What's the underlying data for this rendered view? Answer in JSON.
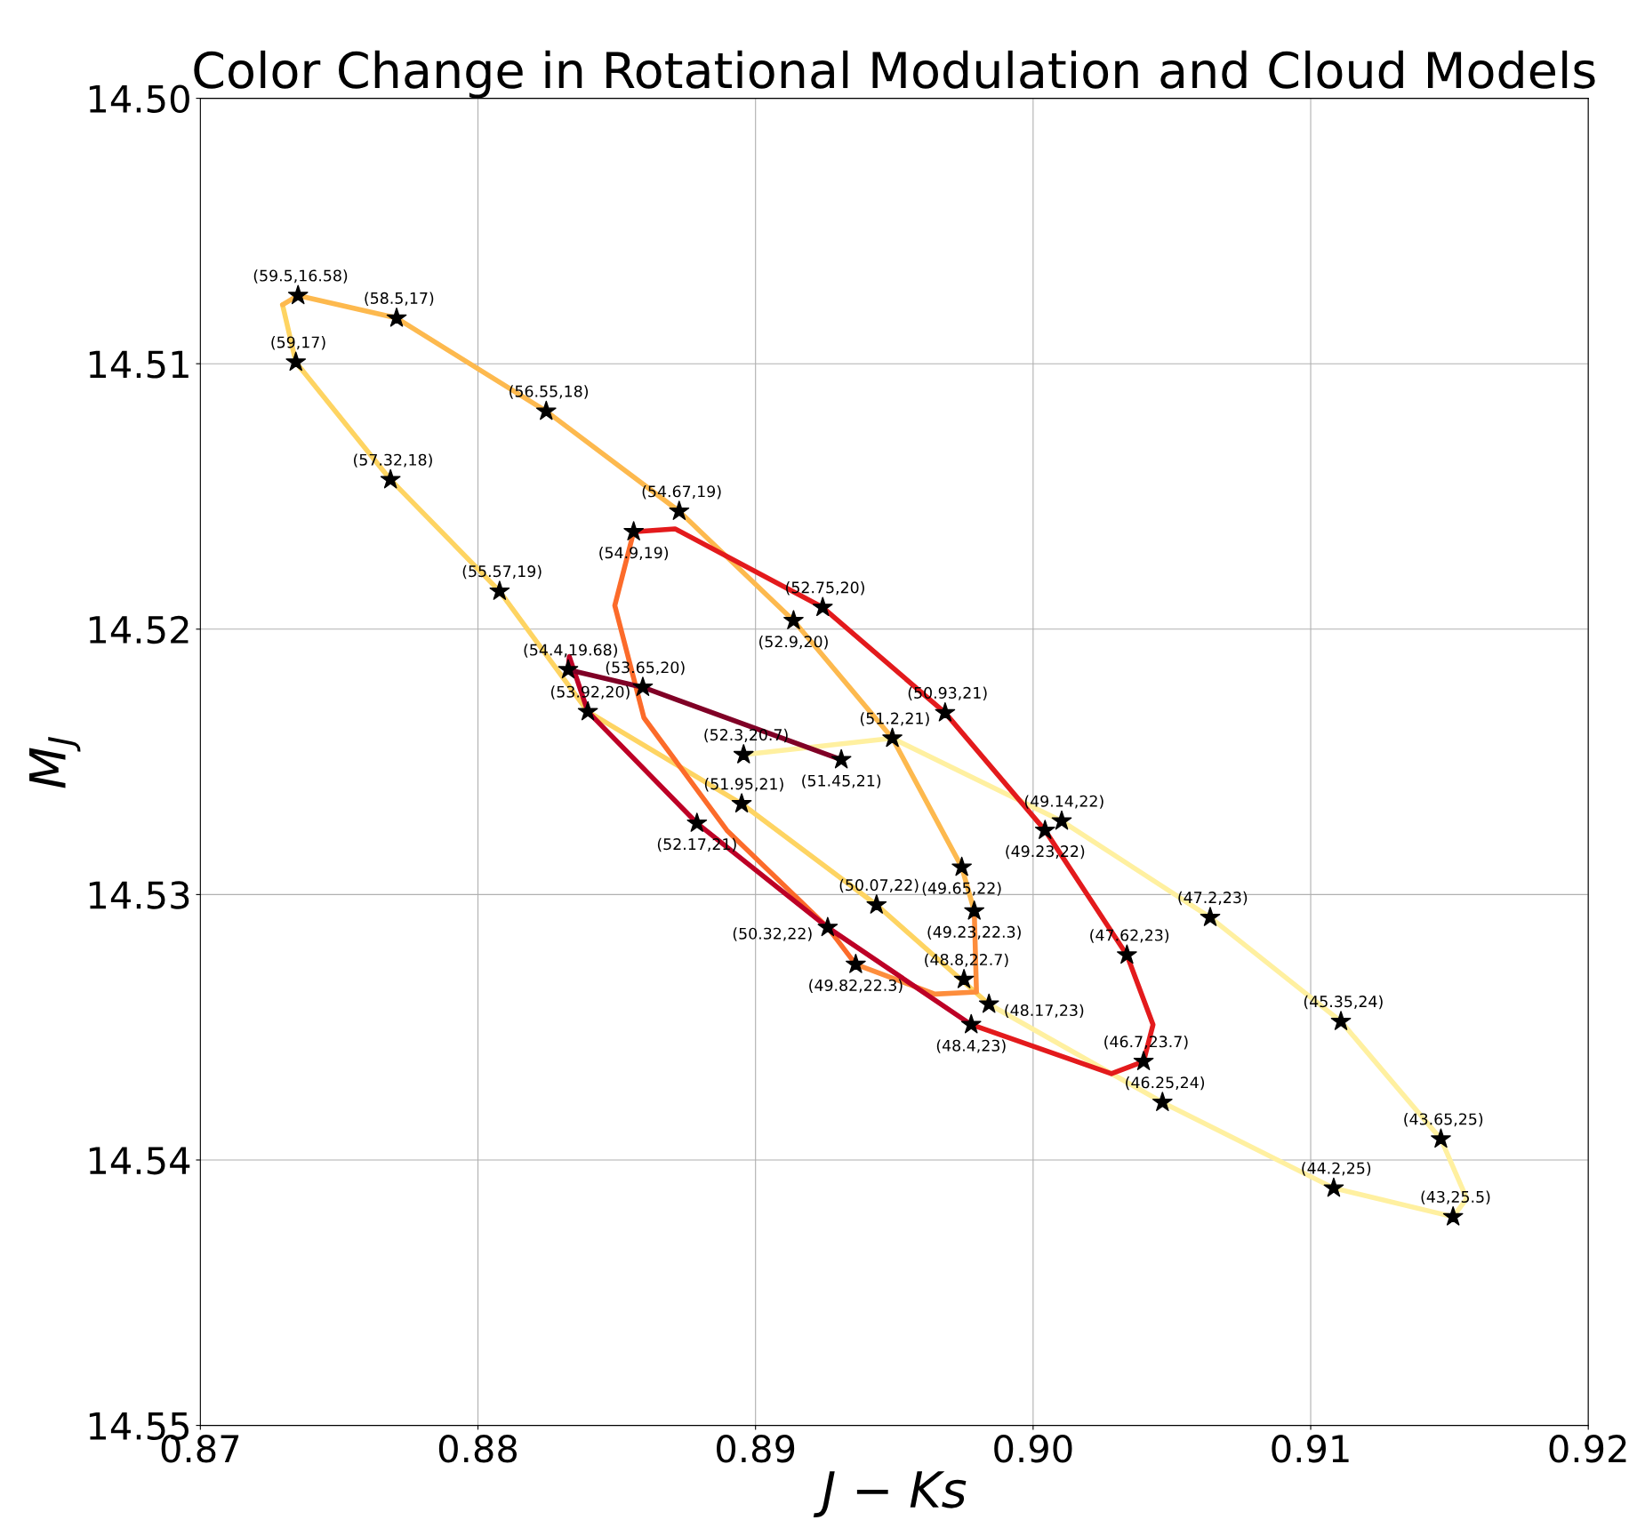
{
  "chart_data": {
    "type": "line",
    "title": "Color Change in Rotational Modulation and Cloud Models",
    "xlabel": "J − Ks",
    "ylabel": "M$_{J}$",
    "xlim": [
      0.87,
      0.92
    ],
    "ylim": [
      14.55,
      14.5
    ],
    "xticks": [
      0.87,
      0.88,
      0.89,
      {
        "value": 0.9,
        "label": "0.90"
      },
      0.91,
      0.92
    ],
    "yticks": [
      {
        "value": 14.5,
        "label": "14.50"
      },
      14.51,
      14.52,
      14.53,
      14.54,
      14.55
    ],
    "grid": true,
    "legend": false,
    "line_style": "solid",
    "marker": "none",
    "series": [
      {
        "color": "#fed462",
        "x": [
          0.87296,
          0.87344,
          0.87685,
          0.88078,
          0.88396,
          0.8895,
          0.89436,
          0.89841
        ],
        "values": [
          14.50778,
          14.50994,
          14.51437,
          14.51857,
          14.52311,
          14.52658,
          14.53039,
          14.53413
        ]
      },
      {
        "color": "#fff0a0",
        "x": [
          0.89841,
          0.90466,
          0.91083,
          0.91513,
          0.91562,
          0.91469,
          0.91109,
          0.90638,
          0.90103,
          0.89493,
          0.88957
        ],
        "values": [
          14.53413,
          14.53783,
          14.54106,
          14.54214,
          14.54145,
          14.53921,
          14.53478,
          14.53086,
          14.52723,
          14.52411,
          14.52473
        ]
      },
      {
        "color": "#fdb94e",
        "x": [
          0.87296,
          0.87352,
          0.87707,
          0.88246,
          0.88725,
          0.89137,
          0.89493,
          0.89743,
          0.89788
        ],
        "values": [
          14.50778,
          14.50743,
          14.50828,
          14.51179,
          14.51556,
          14.51968,
          14.52411,
          14.52897,
          14.53062
        ]
      },
      {
        "color": "#fd8d3c",
        "x": [
          0.89788,
          0.89796,
          0.89646,
          0.89361
        ],
        "values": [
          14.53062,
          14.53367,
          14.53375,
          14.53263
        ]
      },
      {
        "color": "#fc6b2a",
        "x": [
          0.89361,
          0.8926,
          0.88897,
          0.88598,
          0.88493,
          0.88561
        ],
        "values": [
          14.53263,
          14.53124,
          14.52758,
          14.52334,
          14.51911,
          14.51633
        ]
      },
      {
        "color": "#e31a1c",
        "x": [
          0.88561,
          0.8871,
          0.89242,
          0.89683,
          0.90043,
          0.90338,
          0.90432,
          0.90398,
          0.90282,
          0.89777
        ],
        "values": [
          14.51633,
          14.51622,
          14.51918,
          14.52315,
          14.52758,
          14.53228,
          14.5349,
          14.53629,
          14.53675,
          14.5349
        ]
      },
      {
        "color": "#bd0026",
        "x": [
          0.89777,
          0.8926,
          0.88789,
          0.88396,
          0.88329,
          0.88325
        ],
        "values": [
          14.5349,
          14.53124,
          14.52731,
          14.52311,
          14.52103,
          14.52153
        ]
      },
      {
        "color": "#800026",
        "x": [
          0.88325,
          0.88594,
          0.89309
        ],
        "values": [
          14.52153,
          14.52219,
          14.52492
        ]
      },
      {
        "type": "scatter",
        "marker": "star",
        "color": "#000000",
        "x": [
          0.87352,
          0.87707,
          0.87344,
          0.88246,
          0.87685,
          0.88725,
          0.88561,
          0.88078,
          0.89242,
          0.89137,
          0.88325,
          0.88594,
          0.88396,
          0.89683,
          0.89493,
          0.88957,
          0.89309,
          0.8895,
          0.88789,
          0.90103,
          0.90043,
          0.89743,
          0.89436,
          0.89788,
          0.90638,
          0.8926,
          0.89361,
          0.90338,
          0.89751,
          0.89841,
          0.91109,
          0.89777,
          0.90398,
          0.90466,
          0.91469,
          0.91083,
          0.91513
        ],
        "values": [
          14.50743,
          14.50828,
          14.50994,
          14.51179,
          14.51437,
          14.51556,
          14.51633,
          14.51857,
          14.51918,
          14.51968,
          14.52153,
          14.52219,
          14.52311,
          14.52315,
          14.52411,
          14.52473,
          14.52492,
          14.52658,
          14.52731,
          14.52723,
          14.52758,
          14.52897,
          14.53039,
          14.53062,
          14.53086,
          14.53124,
          14.53263,
          14.53228,
          14.5332,
          14.53413,
          14.53478,
          14.5349,
          14.53629,
          14.53783,
          14.53921,
          14.54106,
          14.54214
        ]
      }
    ],
    "annotations": [
      {
        "text": "(59.5,16.58)",
        "x": 0.87352,
        "y": 14.50743
      },
      {
        "text": "(58.5,17)",
        "x": 0.87707,
        "y": 14.50828
      },
      {
        "text": "(59,17)",
        "x": 0.87344,
        "y": 14.50994
      },
      {
        "text": "(56.55,18)",
        "x": 0.88246,
        "y": 14.51179
      },
      {
        "text": "(57.32,18)",
        "x": 0.87685,
        "y": 14.51437
      },
      {
        "text": "(54.67,19)",
        "x": 0.88725,
        "y": 14.51556
      },
      {
        "text": "(54.9,19)",
        "x": 0.88561,
        "y": 14.51633
      },
      {
        "text": "(55.57,19)",
        "x": 0.88078,
        "y": 14.51857
      },
      {
        "text": "(52.75,20)",
        "x": 0.89242,
        "y": 14.51918
      },
      {
        "text": "(52.9,20)",
        "x": 0.89137,
        "y": 14.51968
      },
      {
        "text": "(54.4,19.68)",
        "x": 0.88325,
        "y": 14.52153
      },
      {
        "text": "(53.65,20)",
        "x": 0.88594,
        "y": 14.52219
      },
      {
        "text": "(53.92,20)",
        "x": 0.88396,
        "y": 14.52311
      },
      {
        "text": "(50.93,21)",
        "x": 0.89683,
        "y": 14.52315
      },
      {
        "text": "(51.2,21)",
        "x": 0.89493,
        "y": 14.52411
      },
      {
        "text": "(52.3,20.7)",
        "x": 0.88957,
        "y": 14.52473
      },
      {
        "text": "(51.45,21)",
        "x": 0.89309,
        "y": 14.52492
      },
      {
        "text": "(51.95,21)",
        "x": 0.8895,
        "y": 14.52658
      },
      {
        "text": "(52.17,21)",
        "x": 0.88789,
        "y": 14.52731
      },
      {
        "text": "(49.14,22)",
        "x": 0.90103,
        "y": 14.52723
      },
      {
        "text": "(49.23,22)",
        "x": 0.90043,
        "y": 14.52758
      },
      {
        "text": "(49.65,22)",
        "x": 0.89743,
        "y": 14.52897
      },
      {
        "text": "(50.07,22)",
        "x": 0.89436,
        "y": 14.53039
      },
      {
        "text": "(49.23,22.3)",
        "x": 0.89788,
        "y": 14.53062
      },
      {
        "text": "(47.2,23)",
        "x": 0.90638,
        "y": 14.53086
      },
      {
        "text": "(50.32,22)",
        "x": 0.8926,
        "y": 14.53124
      },
      {
        "text": "(49.82,22.3)",
        "x": 0.89361,
        "y": 14.53263
      },
      {
        "text": "(47.62,23)",
        "x": 0.90338,
        "y": 14.53228
      },
      {
        "text": "(48.8,22.7)",
        "x": 0.89751,
        "y": 14.5332
      },
      {
        "text": "(48.17,23)",
        "x": 0.89841,
        "y": 14.53413
      },
      {
        "text": "(45.35,24)",
        "x": 0.91109,
        "y": 14.53478
      },
      {
        "text": "(48.4,23)",
        "x": 0.89777,
        "y": 14.5349
      },
      {
        "text": "(46.7,23.7)",
        "x": 0.90398,
        "y": 14.53629
      },
      {
        "text": "(46.25,24)",
        "x": 0.90466,
        "y": 14.53783
      },
      {
        "text": "(43.65,25)",
        "x": 0.91469,
        "y": 14.53921
      },
      {
        "text": "(44.2,25)",
        "x": 0.91083,
        "y": 14.54106
      },
      {
        "text": "(43,25.5)",
        "x": 0.91513,
        "y": 14.54214
      }
    ]
  }
}
